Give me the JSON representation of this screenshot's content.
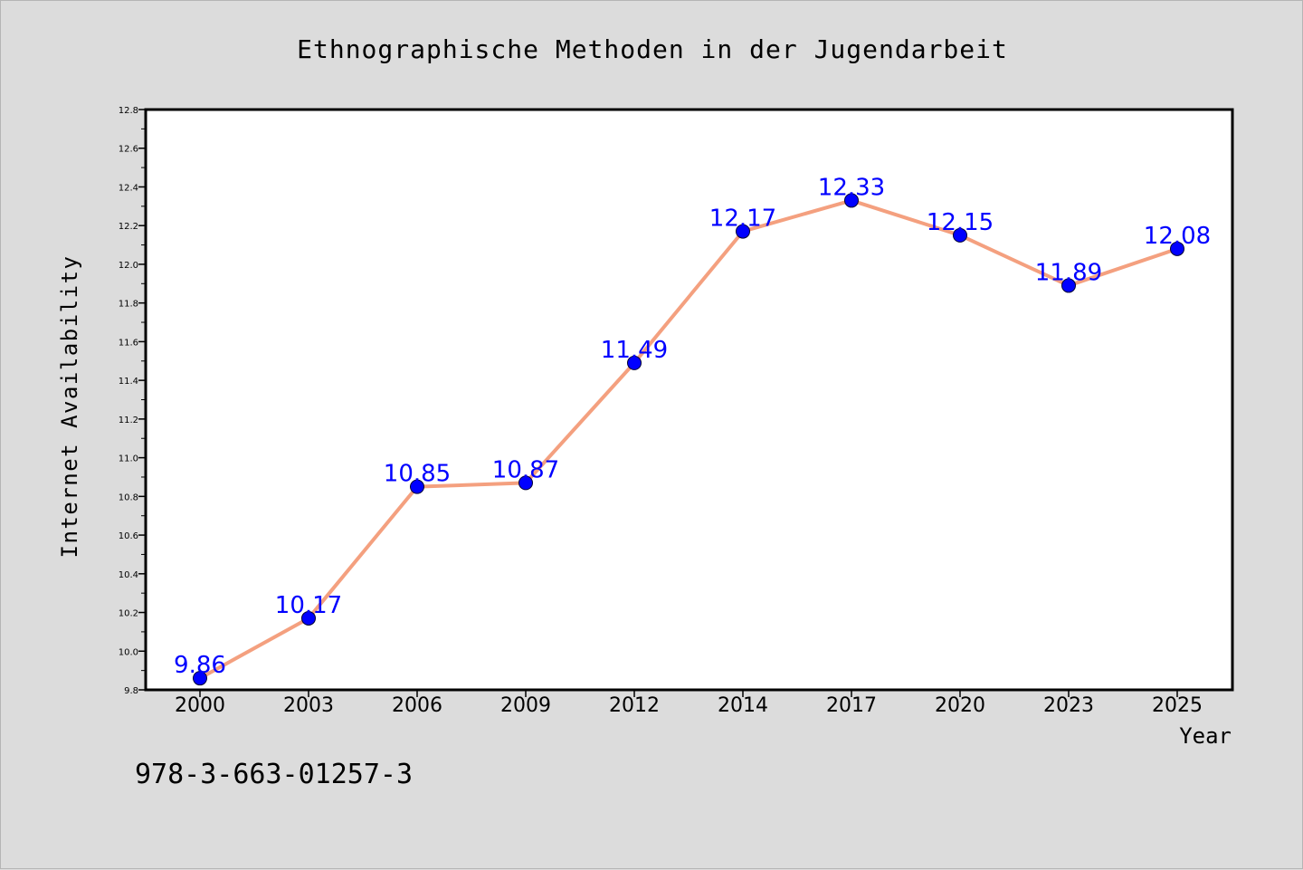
{
  "chart_data": {
    "type": "line",
    "title": "Ethnographische Methoden in der Jugendarbeit",
    "xlabel": "Year",
    "ylabel": "Internet Availability",
    "categories": [
      "2000",
      "2003",
      "2006",
      "2009",
      "2012",
      "2014",
      "2017",
      "2020",
      "2023",
      "2025"
    ],
    "series": [
      {
        "values": [
          9.86,
          10.17,
          10.85,
          10.87,
          11.49,
          12.17,
          12.33,
          12.15,
          11.89,
          12.08
        ],
        "labels": [
          "9.86",
          "10.17",
          "10.85",
          "10.87",
          "11.49",
          "12.17",
          "12.33",
          "12.15",
          "11.89",
          "12.08"
        ],
        "line_color": "#f4a07f",
        "marker_color": "#0000ff"
      }
    ],
    "ylim": [
      9.8,
      12.8
    ],
    "yticks": [
      "9.8",
      "10.0",
      "10.2",
      "10.4",
      "10.6",
      "10.8",
      "11.0",
      "11.2",
      "11.4",
      "11.6",
      "11.8",
      "12.0",
      "12.2",
      "12.4",
      "12.6",
      "12.8"
    ],
    "grid": false,
    "label_color": "#0000ff",
    "background": "#dcdcdc",
    "plot_background": "#ffffff"
  },
  "footer": {
    "isbn": "978-3-663-01257-3"
  }
}
